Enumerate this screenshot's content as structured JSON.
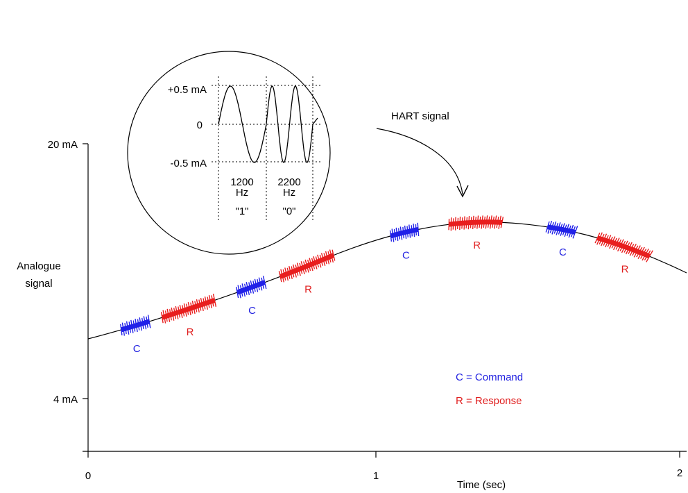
{
  "colors": {
    "command": "#2121e8",
    "response": "#e81e1e",
    "axis": "#000000"
  },
  "y_axis": {
    "label_line1": "Analogue",
    "label_line2": "signal",
    "tick_top": "20 mA",
    "tick_bottom": "4 mA"
  },
  "x_axis": {
    "label": "Time (sec)",
    "ticks": [
      "0",
      "1",
      "2"
    ]
  },
  "inset": {
    "title": "HART signal",
    "level_top": "+0.5 mA",
    "level_zero": "0",
    "level_bottom": "-0.5 mA",
    "freq1_value": "1200",
    "freq1_unit": "Hz",
    "freq1_bit": "\"1\"",
    "freq2_value": "2200",
    "freq2_unit": "Hz",
    "freq2_bit": "\"0\""
  },
  "bursts": [
    {
      "kind": "C",
      "label": "C",
      "t": 0.16
    },
    {
      "kind": "R",
      "label": "R",
      "t": 0.34
    },
    {
      "kind": "C",
      "label": "C",
      "t": 0.55
    },
    {
      "kind": "R",
      "label": "R",
      "t": 0.74
    },
    {
      "kind": "C",
      "label": "C",
      "t": 1.07
    },
    {
      "kind": "R",
      "label": "R",
      "t": 1.31
    },
    {
      "kind": "C",
      "label": "C",
      "t": 1.6
    },
    {
      "kind": "R",
      "label": "R",
      "t": 1.81
    }
  ],
  "legend": {
    "command": "C = Command",
    "response": "R = Response"
  }
}
